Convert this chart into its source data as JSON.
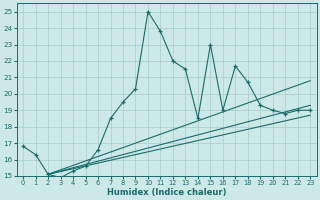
{
  "xlabel": "Humidex (Indice chaleur)",
  "bg_color": "#cce8e8",
  "grid_color": "#aacccc",
  "line_color": "#1a6b6b",
  "xlim": [
    -0.5,
    23.5
  ],
  "ylim": [
    15,
    25.5
  ],
  "xticks": [
    0,
    1,
    2,
    3,
    4,
    5,
    6,
    7,
    8,
    9,
    10,
    11,
    12,
    13,
    14,
    15,
    16,
    17,
    18,
    19,
    20,
    21,
    22,
    23
  ],
  "yticks": [
    15,
    16,
    17,
    18,
    19,
    20,
    21,
    22,
    23,
    24,
    25
  ],
  "series1_x": [
    0,
    1,
    2,
    3,
    4,
    5,
    6,
    7,
    8,
    9,
    10,
    11,
    12,
    13,
    14,
    15,
    16,
    17,
    18,
    19,
    20,
    21,
    22,
    23
  ],
  "series1_y": [
    16.8,
    16.3,
    15.1,
    14.9,
    15.3,
    15.6,
    16.6,
    18.5,
    19.5,
    20.3,
    25.0,
    23.8,
    22.0,
    21.5,
    18.5,
    23.0,
    19.0,
    21.7,
    20.7,
    19.3,
    19.0,
    18.8,
    19.0,
    19.0
  ],
  "line2_x": [
    2,
    23
  ],
  "line2_y": [
    15.1,
    18.7
  ],
  "line3_x": [
    2,
    23
  ],
  "line3_y": [
    15.1,
    19.3
  ],
  "line4_x": [
    2,
    23
  ],
  "line4_y": [
    15.1,
    20.8
  ]
}
